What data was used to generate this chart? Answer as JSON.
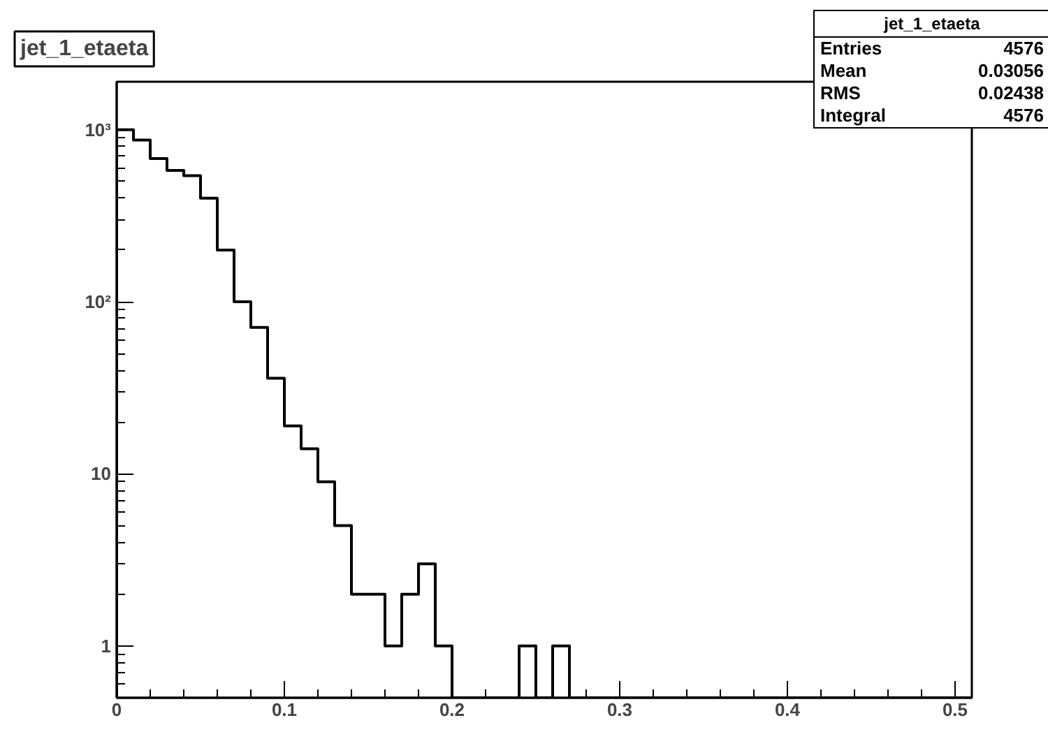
{
  "chart_data": {
    "type": "histogram",
    "title": "jet_1_etaeta",
    "bins": [
      0,
      0.01,
      0.02,
      0.03,
      0.04,
      0.05,
      0.06,
      0.07,
      0.08,
      0.09,
      0.1,
      0.11,
      0.12,
      0.13,
      0.14,
      0.15,
      0.16,
      0.17,
      0.18,
      0.19,
      0.2,
      0.21,
      0.22,
      0.23,
      0.24,
      0.25,
      0.26,
      0.27,
      0.28,
      0.29,
      0.3,
      0.31,
      0.32,
      0.33,
      0.34,
      0.35,
      0.36,
      0.37,
      0.38,
      0.39,
      0.4,
      0.41,
      0.42,
      0.43,
      0.44,
      0.45,
      0.46,
      0.47,
      0.48,
      0.49,
      0.5,
      0.51
    ],
    "values": [
      1000,
      870,
      680,
      580,
      540,
      400,
      200,
      100,
      71,
      36,
      19,
      14,
      9,
      5,
      2,
      2,
      1,
      2,
      3,
      1,
      null,
      null,
      null,
      null,
      1,
      null,
      1,
      null,
      null,
      null,
      null,
      null,
      null,
      null,
      null,
      null,
      null,
      null,
      null,
      null,
      null,
      null,
      null,
      null,
      null,
      null,
      null,
      null,
      null,
      null,
      null
    ],
    "color": "#000000",
    "xlim": [
      0,
      0.51
    ],
    "xticks": [
      0,
      0.1,
      0.2,
      0.3,
      0.4,
      0.5
    ],
    "ylim": [
      0.5,
      1900
    ],
    "yticks": [
      1,
      10,
      {
        "value": 100,
        "label": "10²"
      },
      {
        "value": 1000,
        "label": "10³"
      }
    ],
    "log": "y",
    "grid": false,
    "annotations": [
      "jet_1_etaeta",
      "Entries 4576",
      "Mean 0.03056",
      "RMS 0.02438",
      "Integral 4576"
    ]
  }
}
